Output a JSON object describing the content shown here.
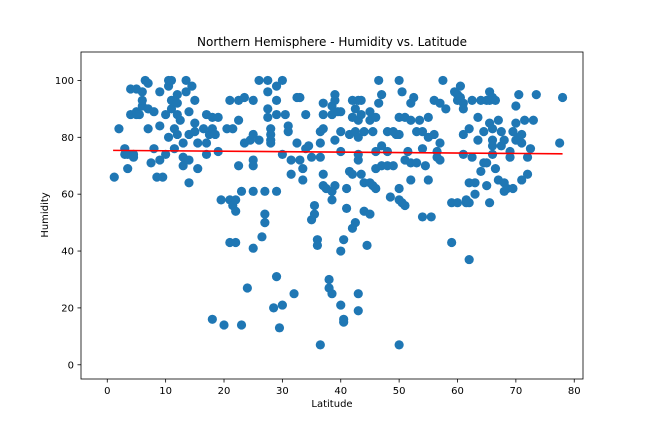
{
  "chart_data": {
    "type": "scatter",
    "title": "Northern Hemisphere - Humidity vs. Latitude",
    "xlabel": "Latitude",
    "ylabel": "Humidity",
    "xlim": [
      -4.5,
      81.5
    ],
    "ylim": [
      -5,
      110
    ],
    "xticks": [
      0,
      10,
      20,
      30,
      40,
      50,
      60,
      70,
      80
    ],
    "yticks": [
      0,
      20,
      40,
      60,
      80,
      100
    ],
    "grid": false,
    "point_color": "#1f77b4",
    "regression": {
      "x": [
        1,
        78
      ],
      "y": [
        75.4,
        74.2
      ],
      "color": "#ff0000"
    },
    "points": [
      [
        1.2,
        66
      ],
      [
        2,
        83
      ],
      [
        3,
        76
      ],
      [
        3,
        74
      ],
      [
        3.5,
        74
      ],
      [
        3.5,
        69
      ],
      [
        4,
        88
      ],
      [
        4,
        97
      ],
      [
        4.5,
        74
      ],
      [
        4.5,
        73
      ],
      [
        5,
        88
      ],
      [
        5,
        97
      ],
      [
        5,
        89
      ],
      [
        5.5,
        88
      ],
      [
        6,
        91
      ],
      [
        6,
        96
      ],
      [
        6,
        93
      ],
      [
        6.5,
        100
      ],
      [
        7,
        99
      ],
      [
        7,
        90
      ],
      [
        7,
        83
      ],
      [
        7.5,
        71
      ],
      [
        8,
        76
      ],
      [
        8,
        89
      ],
      [
        8.5,
        66
      ],
      [
        9,
        96
      ],
      [
        9,
        84
      ],
      [
        9,
        72
      ],
      [
        9.5,
        66
      ],
      [
        10,
        88
      ],
      [
        10,
        74
      ],
      [
        10.5,
        98
      ],
      [
        10.5,
        100
      ],
      [
        10.5,
        80
      ],
      [
        11,
        100
      ],
      [
        11,
        93
      ],
      [
        11,
        90
      ],
      [
        11.5,
        83
      ],
      [
        11.5,
        76
      ],
      [
        12,
        95
      ],
      [
        12,
        92
      ],
      [
        12,
        88
      ],
      [
        12,
        81
      ],
      [
        12.5,
        86
      ],
      [
        13,
        78
      ],
      [
        13,
        73
      ],
      [
        13,
        70
      ],
      [
        13.5,
        100
      ],
      [
        13.5,
        96
      ],
      [
        14,
        89
      ],
      [
        14,
        81
      ],
      [
        14,
        72
      ],
      [
        14,
        64
      ],
      [
        14.5,
        98
      ],
      [
        15,
        93
      ],
      [
        15,
        85
      ],
      [
        15,
        82
      ],
      [
        15.5,
        78
      ],
      [
        15.5,
        69
      ],
      [
        16.5,
        83
      ],
      [
        17,
        88
      ],
      [
        17,
        78
      ],
      [
        17,
        74
      ],
      [
        17.5,
        81
      ],
      [
        18,
        87
      ],
      [
        18,
        83
      ],
      [
        18,
        16
      ],
      [
        18.5,
        81
      ],
      [
        19,
        87
      ],
      [
        19,
        75
      ],
      [
        19.5,
        58
      ],
      [
        20,
        14
      ],
      [
        20.5,
        83
      ],
      [
        21,
        93
      ],
      [
        21,
        58
      ],
      [
        21,
        43
      ],
      [
        21.5,
        83
      ],
      [
        21.5,
        56
      ],
      [
        22,
        58
      ],
      [
        22,
        54
      ],
      [
        22,
        43
      ],
      [
        22.5,
        93
      ],
      [
        22.5,
        86
      ],
      [
        22.5,
        70
      ],
      [
        23,
        61
      ],
      [
        23,
        14
      ],
      [
        23.5,
        94
      ],
      [
        23.5,
        78
      ],
      [
        24,
        27
      ],
      [
        24.5,
        79
      ],
      [
        25,
        93
      ],
      [
        25,
        81
      ],
      [
        25,
        72
      ],
      [
        25,
        70
      ],
      [
        25,
        61
      ],
      [
        25,
        41
      ],
      [
        26,
        100
      ],
      [
        26,
        79
      ],
      [
        26.5,
        45
      ],
      [
        27,
        61
      ],
      [
        27,
        53
      ],
      [
        27,
        50
      ],
      [
        27.5,
        100
      ],
      [
        27.5,
        96
      ],
      [
        27.5,
        90
      ],
      [
        27.5,
        87
      ],
      [
        28,
        83
      ],
      [
        28,
        81
      ],
      [
        28,
        79
      ],
      [
        28,
        78
      ],
      [
        28.5,
        20
      ],
      [
        29,
        98
      ],
      [
        29,
        93
      ],
      [
        29,
        88
      ],
      [
        29,
        61
      ],
      [
        29,
        31
      ],
      [
        29.5,
        13
      ],
      [
        30,
        100
      ],
      [
        30,
        74
      ],
      [
        30,
        21
      ],
      [
        30.5,
        88
      ],
      [
        31,
        84
      ],
      [
        31,
        82
      ],
      [
        31.5,
        72
      ],
      [
        31.5,
        67
      ],
      [
        32,
        25
      ],
      [
        32.5,
        94
      ],
      [
        32.5,
        78
      ],
      [
        33,
        94
      ],
      [
        33,
        72
      ],
      [
        33.5,
        69
      ],
      [
        33.5,
        65
      ],
      [
        34,
        88
      ],
      [
        34,
        76
      ],
      [
        34.5,
        77
      ],
      [
        35,
        73
      ],
      [
        35,
        51
      ],
      [
        35.5,
        56
      ],
      [
        35.5,
        53
      ],
      [
        36,
        44
      ],
      [
        36,
        42
      ],
      [
        36.5,
        82
      ],
      [
        36.5,
        78
      ],
      [
        36.5,
        73
      ],
      [
        36.5,
        7
      ],
      [
        37,
        92
      ],
      [
        37,
        88
      ],
      [
        37,
        83
      ],
      [
        37,
        67
      ],
      [
        37,
        63
      ],
      [
        37.5,
        62
      ],
      [
        38,
        30
      ],
      [
        38,
        27
      ],
      [
        38.5,
        91
      ],
      [
        38.5,
        88
      ],
      [
        38.5,
        61
      ],
      [
        38.5,
        58
      ],
      [
        38.5,
        25
      ],
      [
        39,
        95
      ],
      [
        39,
        93
      ],
      [
        39,
        79
      ],
      [
        39,
        63
      ],
      [
        39.5,
        89
      ],
      [
        40,
        89
      ],
      [
        40,
        82
      ],
      [
        40,
        75
      ],
      [
        40,
        40
      ],
      [
        40,
        21
      ],
      [
        40.5,
        44
      ],
      [
        40.5,
        16
      ],
      [
        40.5,
        15
      ],
      [
        41,
        62
      ],
      [
        41,
        55
      ],
      [
        41.5,
        81
      ],
      [
        41.5,
        68
      ],
      [
        42,
        93
      ],
      [
        42,
        87
      ],
      [
        42,
        48
      ],
      [
        42,
        67
      ],
      [
        42.5,
        90
      ],
      [
        42.5,
        82
      ],
      [
        42.5,
        50
      ],
      [
        43,
        93
      ],
      [
        43,
        86
      ],
      [
        43,
        80
      ],
      [
        43,
        74
      ],
      [
        43,
        72
      ],
      [
        43,
        25
      ],
      [
        43,
        19
      ],
      [
        43.5,
        93
      ],
      [
        43.5,
        88
      ],
      [
        43.5,
        67
      ],
      [
        44,
        82
      ],
      [
        44,
        64
      ],
      [
        44,
        54
      ],
      [
        44.5,
        42
      ],
      [
        45,
        89
      ],
      [
        45,
        86
      ],
      [
        45,
        64
      ],
      [
        45,
        53
      ],
      [
        45.5,
        82
      ],
      [
        45.5,
        63
      ],
      [
        46,
        87
      ],
      [
        46,
        75
      ],
      [
        46,
        69
      ],
      [
        46,
        62
      ],
      [
        46.5,
        100
      ],
      [
        46.5,
        92
      ],
      [
        47,
        95
      ],
      [
        47,
        77
      ],
      [
        47,
        70
      ],
      [
        48,
        82
      ],
      [
        48,
        75
      ],
      [
        48,
        70
      ],
      [
        48.5,
        59
      ],
      [
        49,
        82
      ],
      [
        49,
        70
      ],
      [
        49.5,
        81
      ],
      [
        50,
        100
      ],
      [
        50,
        87
      ],
      [
        50,
        81
      ],
      [
        50,
        62
      ],
      [
        50,
        58
      ],
      [
        50,
        7
      ],
      [
        50.5,
        96
      ],
      [
        50.5,
        57
      ],
      [
        51,
        87
      ],
      [
        51,
        72
      ],
      [
        51,
        56
      ],
      [
        51.5,
        75
      ],
      [
        52,
        92
      ],
      [
        52,
        86
      ],
      [
        52,
        71
      ],
      [
        52,
        65
      ],
      [
        52.5,
        94
      ],
      [
        53,
        82
      ],
      [
        53,
        71
      ],
      [
        53.5,
        86
      ],
      [
        54,
        82
      ],
      [
        54,
        76
      ],
      [
        54,
        52
      ],
      [
        54.5,
        70
      ],
      [
        55,
        87
      ],
      [
        55,
        80
      ],
      [
        55,
        65
      ],
      [
        55.5,
        52
      ],
      [
        56,
        93
      ],
      [
        56,
        81
      ],
      [
        56.5,
        75
      ],
      [
        56.5,
        73
      ],
      [
        57,
        92
      ],
      [
        57,
        78
      ],
      [
        57,
        72
      ],
      [
        57.5,
        100
      ],
      [
        58,
        90
      ],
      [
        59,
        43
      ],
      [
        59,
        57
      ],
      [
        59.5,
        96
      ],
      [
        60,
        95
      ],
      [
        60,
        93
      ],
      [
        60,
        57
      ],
      [
        60.5,
        98
      ],
      [
        60.5,
        94
      ],
      [
        61,
        92
      ],
      [
        61,
        90
      ],
      [
        61,
        81
      ],
      [
        61,
        74
      ],
      [
        61.5,
        57
      ],
      [
        61.5,
        58
      ],
      [
        62,
        83
      ],
      [
        62,
        64
      ],
      [
        62,
        57
      ],
      [
        62,
        37
      ],
      [
        62.5,
        93
      ],
      [
        62.5,
        73
      ],
      [
        63,
        64
      ],
      [
        63,
        60
      ],
      [
        63.5,
        87
      ],
      [
        63.5,
        79
      ],
      [
        64,
        93
      ],
      [
        64,
        68
      ],
      [
        64.5,
        82
      ],
      [
        64.5,
        71
      ],
      [
        65,
        93
      ],
      [
        65,
        63
      ],
      [
        65,
        71
      ],
      [
        65.5,
        96
      ],
      [
        65.5,
        93
      ],
      [
        65.5,
        85
      ],
      [
        65.5,
        57
      ],
      [
        66,
        94
      ],
      [
        66,
        83
      ],
      [
        66,
        79
      ],
      [
        66,
        77
      ],
      [
        66,
        74
      ],
      [
        66.5,
        93
      ],
      [
        66.5,
        69
      ],
      [
        67,
        65
      ],
      [
        67,
        86
      ],
      [
        67.5,
        82
      ],
      [
        67.5,
        77
      ],
      [
        68,
        79
      ],
      [
        68,
        64
      ],
      [
        68,
        61
      ],
      [
        68.5,
        62
      ],
      [
        69,
        75
      ],
      [
        69,
        73
      ],
      [
        69.5,
        82
      ],
      [
        69.5,
        62
      ],
      [
        70,
        91
      ],
      [
        70,
        85
      ],
      [
        70,
        79
      ],
      [
        70.5,
        95
      ],
      [
        70.5,
        80
      ],
      [
        71,
        81
      ],
      [
        71,
        78
      ],
      [
        71,
        65
      ],
      [
        71.5,
        86
      ],
      [
        72,
        73
      ],
      [
        72,
        67
      ],
      [
        72.5,
        76
      ],
      [
        73,
        86
      ],
      [
        73.5,
        95
      ],
      [
        77.5,
        78
      ],
      [
        78,
        94
      ]
    ]
  }
}
